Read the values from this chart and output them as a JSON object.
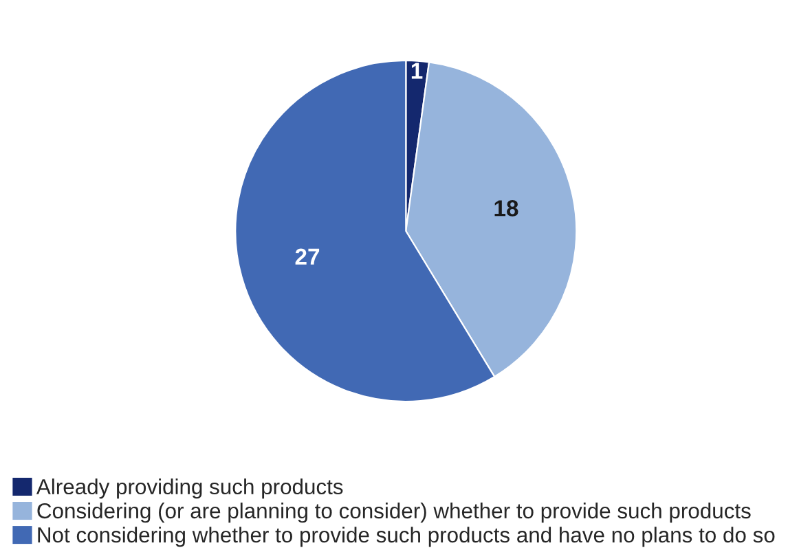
{
  "chart_data": {
    "type": "pie",
    "categories": [
      "Already providing such products",
      "Considering (or are planning to consider) whether to provide such products",
      "Not considering whether to provide such products and have no plans to do so"
    ],
    "values": [
      1,
      18,
      27
    ],
    "colors": [
      "#14286e",
      "#96b4dc",
      "#4169b4"
    ],
    "data_labels": true,
    "legend": "bottom"
  }
}
